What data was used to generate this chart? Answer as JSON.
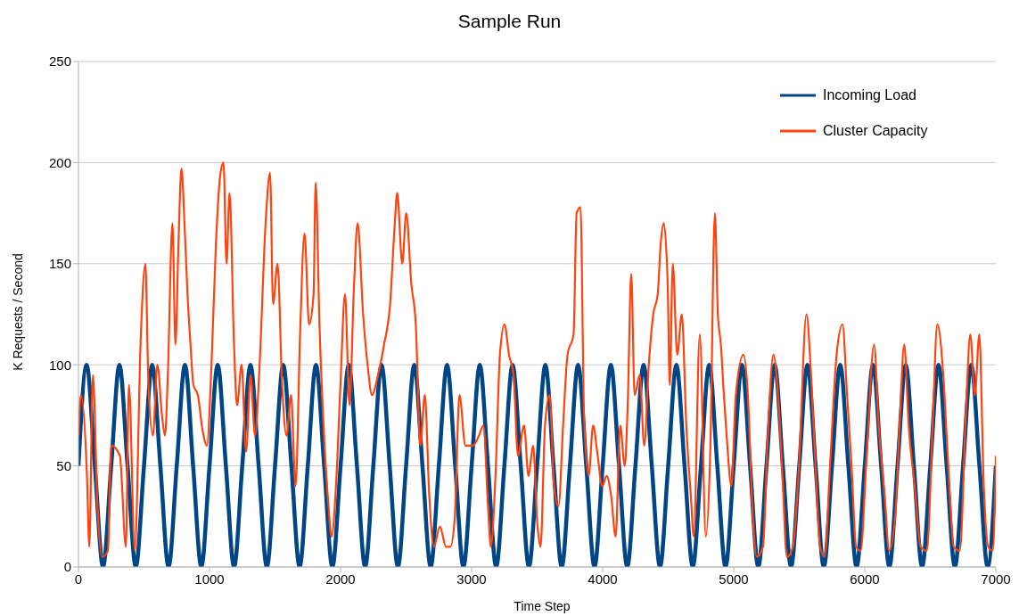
{
  "chart_data": {
    "type": "line",
    "title": "Sample Run",
    "xlabel": "Time Step",
    "ylabel": "K Requests / Second",
    "xlim": [
      0,
      7000
    ],
    "xticks": [
      0,
      1000,
      2000,
      3000,
      4000,
      5000,
      6000,
      7000
    ],
    "ylim": [
      0,
      250
    ],
    "yticks": [
      0,
      50,
      100,
      150,
      200,
      250
    ],
    "grid": "y",
    "legend": "top right",
    "marker": "none",
    "line_style": "solid",
    "series": [
      {
        "name": "Incoming Load",
        "color": "#004586",
        "x": [
          0,
          62.5,
          125,
          187.5,
          250,
          312.5,
          375,
          437.5,
          500,
          562.5,
          625,
          687.5,
          750,
          812.5,
          875,
          937.5,
          1000,
          1062.5,
          1125,
          1187.5,
          1250,
          1312.5,
          1375,
          1437.5,
          1500,
          1562.5,
          1625,
          1687.5,
          1750,
          1812.5,
          1875,
          1937.5,
          2000,
          2062.5,
          2125,
          2187.5,
          2250,
          2312.5,
          2375,
          2437.5,
          2500,
          2562.5,
          2625,
          2687.5,
          2750,
          2812.5,
          2875,
          2937.5,
          3000,
          3062.5,
          3125,
          3187.5,
          3250,
          3312.5,
          3375,
          3437.5,
          3500,
          3562.5,
          3625,
          3687.5,
          3750,
          3812.5,
          3875,
          3937.5,
          4000,
          4062.5,
          4125,
          4187.5,
          4250,
          4312.5,
          4375,
          4437.5,
          4500,
          4562.5,
          4625,
          4687.5,
          4750,
          4812.5,
          4875,
          4937.5,
          5000,
          5062.5,
          5125,
          5187.5,
          5250,
          5312.5,
          5375,
          5437.5,
          5500,
          5562.5,
          5625,
          5687.5,
          5750,
          5812.5,
          5875,
          5937.5,
          6000,
          6062.5,
          6125,
          6187.5,
          6250,
          6312.5,
          6375,
          6437.5,
          6500,
          6562.5,
          6625,
          6687.5,
          6750,
          6812.5,
          6875,
          6937.5,
          7000
        ],
        "values": [
          50,
          100,
          50,
          0,
          50,
          100,
          50,
          0,
          50,
          100,
          50,
          0,
          50,
          100,
          50,
          0,
          50,
          100,
          50,
          0,
          50,
          100,
          50,
          0,
          50,
          100,
          50,
          0,
          50,
          100,
          50,
          0,
          50,
          100,
          50,
          0,
          50,
          100,
          50,
          0,
          50,
          100,
          50,
          0,
          50,
          100,
          50,
          0,
          50,
          100,
          50,
          0,
          50,
          100,
          50,
          0,
          50,
          100,
          50,
          0,
          50,
          100,
          50,
          0,
          50,
          100,
          50,
          0,
          50,
          100,
          50,
          0,
          50,
          100,
          50,
          0,
          50,
          100,
          50,
          0,
          50,
          100,
          50,
          0,
          50,
          100,
          50,
          0,
          50,
          100,
          50,
          0,
          50,
          100,
          50,
          0,
          50,
          100,
          50,
          0,
          50,
          100,
          50,
          0,
          50,
          100,
          50,
          0,
          50,
          100,
          50,
          0,
          50
        ]
      },
      {
        "name": "Cluster Capacity",
        "color": "#ff420e",
        "x": [
          0,
          19,
          65,
          83,
          110,
          145,
          180,
          225,
          250,
          316,
          362,
          385,
          430,
          476,
          511,
          534,
          568,
          602,
          637,
          660,
          682,
          717,
          740,
          763,
          786,
          809,
          832,
          855,
          877,
          911,
          946,
          980,
          1015,
          1049,
          1084,
          1107,
          1130,
          1153,
          1187,
          1210,
          1245,
          1279,
          1313,
          1347,
          1382,
          1428,
          1462,
          1485,
          1519,
          1554,
          1588,
          1622,
          1657,
          1691,
          1725,
          1760,
          1794,
          1810,
          1839,
          1874,
          1908,
          1931,
          1965,
          1999,
          2034,
          2068,
          2103,
          2130,
          2172,
          2206,
          2240,
          2286,
          2332,
          2378,
          2412,
          2432,
          2471,
          2501,
          2540,
          2574,
          2609,
          2643,
          2677,
          2712,
          2758,
          2804,
          2838,
          2872,
          2907,
          2953,
          3010,
          3056,
          3090,
          3125,
          3147,
          3182,
          3216,
          3251,
          3285,
          3320,
          3354,
          3400,
          3434,
          3469,
          3503,
          3526,
          3560,
          3595,
          3629,
          3663,
          3698,
          3732,
          3778,
          3801,
          3831,
          3858,
          3893,
          3927,
          3962,
          3996,
          4030,
          4065,
          4099,
          4134,
          4168,
          4191,
          4218,
          4244,
          4283,
          4317,
          4352,
          4386,
          4420,
          4443,
          4466,
          4496,
          4512,
          4535,
          4569,
          4604,
          4638,
          4673,
          4695,
          4741,
          4787,
          4822,
          4856,
          4879,
          4902,
          4925,
          4948,
          4982,
          5016,
          5074,
          5108,
          5142,
          5177,
          5223,
          5257,
          5303,
          5338,
          5372,
          5406,
          5452,
          5498,
          5555,
          5590,
          5624,
          5659,
          5693,
          5739,
          5785,
          5830,
          5865,
          5899,
          5934,
          5968,
          6014,
          6071,
          6106,
          6152,
          6186,
          6232,
          6266,
          6301,
          6335,
          6381,
          6427,
          6473,
          6518,
          6553,
          6599,
          6633,
          6679,
          6725,
          6771,
          6805,
          6840,
          6874,
          6908,
          6942,
          6977,
          7000
        ],
        "values": [
          65,
          85,
          45,
          10,
          95,
          30,
          5,
          8,
          60,
          55,
          10,
          90,
          8,
          115,
          150,
          90,
          65,
          100,
          75,
          65,
          95,
          170,
          110,
          160,
          197,
          170,
          135,
          110,
          90,
          85,
          68,
          60,
          100,
          160,
          195,
          200,
          150,
          185,
          110,
          80,
          100,
          57,
          95,
          65,
          100,
          170,
          195,
          130,
          150,
          90,
          65,
          85,
          40,
          115,
          165,
          120,
          135,
          190,
          120,
          65,
          30,
          15,
          40,
          90,
          135,
          80,
          140,
          170,
          125,
          100,
          85,
          95,
          110,
          130,
          168,
          185,
          150,
          175,
          140,
          120,
          60,
          85,
          35,
          10,
          20,
          10,
          10,
          25,
          85,
          60,
          60,
          65,
          70,
          30,
          10,
          45,
          105,
          120,
          105,
          95,
          55,
          70,
          45,
          60,
          20,
          10,
          70,
          85,
          40,
          30,
          70,
          105,
          115,
          175,
          178,
          75,
          45,
          70,
          55,
          40,
          45,
          35,
          15,
          70,
          50,
          80,
          145,
          85,
          95,
          60,
          100,
          125,
          135,
          160,
          170,
          140,
          90,
          150,
          105,
          125,
          70,
          35,
          15,
          115,
          15,
          60,
          175,
          125,
          110,
          85,
          63,
          40,
          85,
          105,
          85,
          30,
          5,
          10,
          60,
          105,
          85,
          45,
          5,
          10,
          50,
          125,
          95,
          50,
          10,
          5,
          55,
          105,
          120,
          85,
          50,
          10,
          8,
          55,
          110,
          70,
          35,
          8,
          25,
          70,
          110,
          70,
          40,
          10,
          8,
          70,
          120,
          95,
          55,
          10,
          8,
          75,
          115,
          85,
          115,
          40,
          10,
          8,
          55
        ]
      }
    ]
  }
}
